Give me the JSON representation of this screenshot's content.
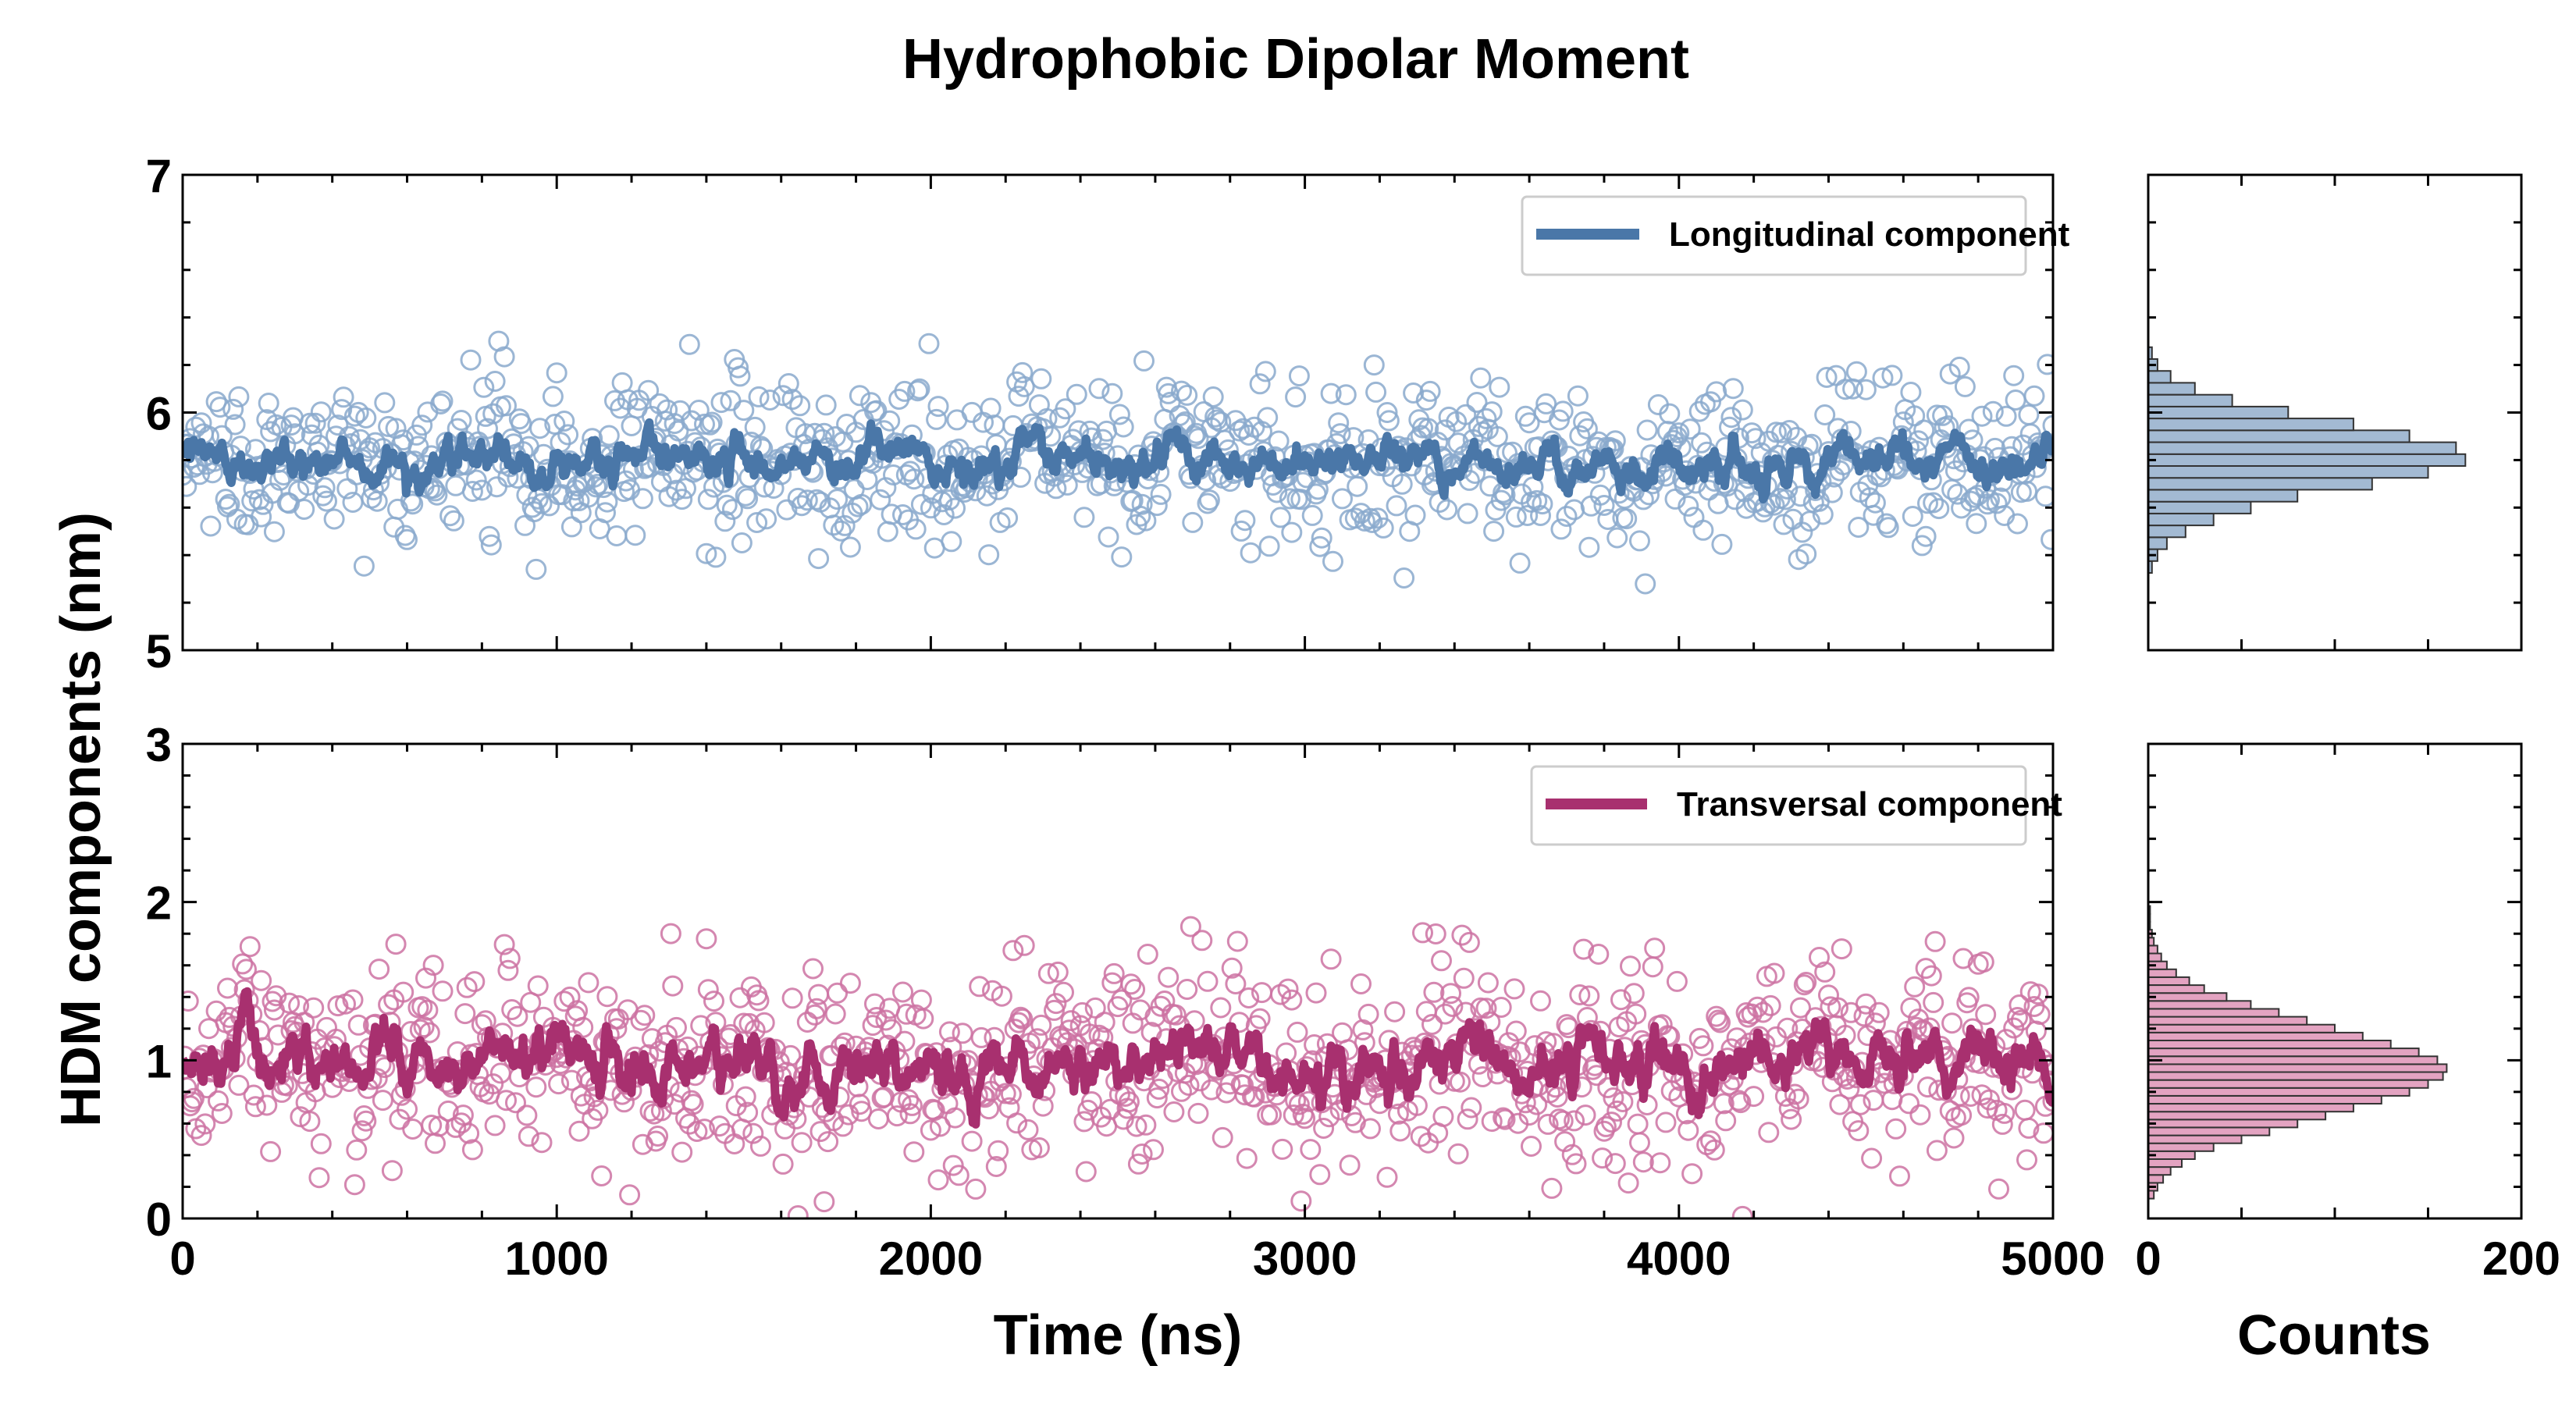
{
  "title": "Hydrophobic Dipolar Moment",
  "colors": {
    "longitudinal": "#4a77a8",
    "longitudinal_marker": "#8aa9cc",
    "transversal": "#a8306f",
    "transversal_marker": "#cc72a2",
    "hist_top": "#a3bad3",
    "hist_bottom": "#e3a3c1"
  },
  "chart_data": [
    {
      "type": "scatter",
      "panel": "top-left",
      "series": [
        {
          "name": "Longitudinal component",
          "kind": "line+scatter",
          "mean": 5.8,
          "scatter_sd": 0.17,
          "line_sd": 0.05
        }
      ],
      "ylabel": "HDM components (nm)",
      "xlim": [
        0,
        5000
      ],
      "ylim": [
        5,
        7
      ],
      "x_ticks": [
        "0",
        "1000",
        "2000",
        "3000",
        "4000",
        "5000"
      ],
      "y_ticks": [
        "5",
        "6",
        "7"
      ],
      "legend": "top-right",
      "sample_every_ns": 2.5
    },
    {
      "type": "bar",
      "panel": "top-right",
      "orientation": "horizontal",
      "bin_centers": [
        5.35,
        5.4,
        5.45,
        5.5,
        5.55,
        5.6,
        5.65,
        5.7,
        5.75,
        5.8,
        5.85,
        5.9,
        5.95,
        6.0,
        6.05,
        6.1,
        6.15,
        6.2,
        6.25
      ],
      "counts": [
        2,
        5,
        10,
        20,
        35,
        55,
        80,
        120,
        150,
        170,
        165,
        140,
        110,
        75,
        45,
        25,
        12,
        5,
        2
      ],
      "xlabel": "",
      "xlim": [
        0,
        200
      ],
      "ylim": [
        5,
        7
      ]
    },
    {
      "type": "scatter",
      "panel": "bottom-left",
      "series": [
        {
          "name": "Transversal component",
          "kind": "line+scatter",
          "mean": 0.98,
          "scatter_sd": 0.3,
          "line_sd": 0.11
        }
      ],
      "xlabel": "Time (ns)",
      "xlim": [
        0,
        5000
      ],
      "ylim": [
        0,
        3
      ],
      "x_ticks": [
        "0",
        "1000",
        "2000",
        "3000",
        "4000",
        "5000"
      ],
      "y_ticks": [
        "0",
        "1",
        "2",
        "3"
      ],
      "legend": "top-right",
      "sample_every_ns": 2.5
    },
    {
      "type": "bar",
      "panel": "bottom-right",
      "orientation": "horizontal",
      "bin_centers": [
        0.15,
        0.2,
        0.25,
        0.3,
        0.35,
        0.4,
        0.45,
        0.5,
        0.55,
        0.6,
        0.65,
        0.7,
        0.75,
        0.8,
        0.85,
        0.9,
        0.95,
        1.0,
        1.05,
        1.1,
        1.15,
        1.2,
        1.25,
        1.3,
        1.35,
        1.4,
        1.45,
        1.5,
        1.55,
        1.6,
        1.65,
        1.7,
        1.75,
        1.8,
        1.85,
        1.9,
        1.95
      ],
      "counts": [
        3,
        5,
        8,
        12,
        18,
        25,
        35,
        50,
        65,
        80,
        95,
        110,
        125,
        140,
        150,
        158,
        160,
        155,
        145,
        130,
        115,
        100,
        85,
        70,
        55,
        42,
        30,
        22,
        15,
        10,
        7,
        5,
        3,
        2,
        1,
        1,
        1
      ],
      "xlabel": "Counts",
      "xlim": [
        0,
        200
      ],
      "ylim": [
        0,
        3
      ],
      "x_ticks": [
        "0",
        "200"
      ]
    }
  ]
}
